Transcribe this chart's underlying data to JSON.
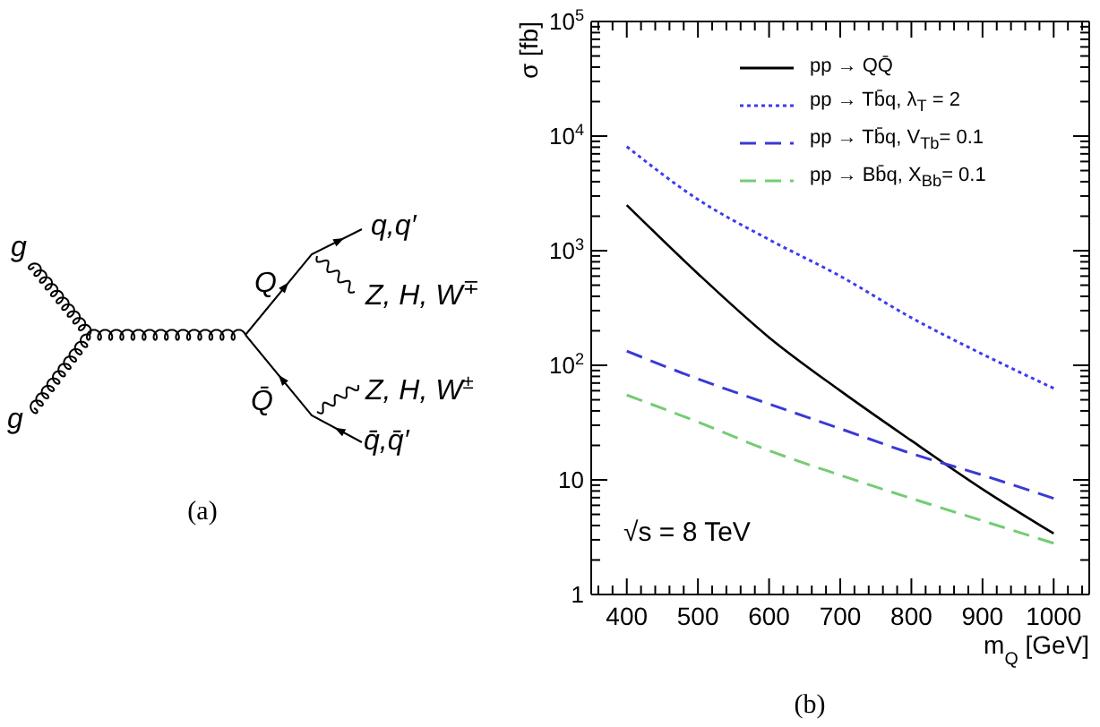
{
  "chart_data": [
    {
      "type": "other",
      "annotations": [
        "g",
        "g",
        "Q",
        "Q̄",
        "q,q′",
        "Z, H, W$^{∓}$",
        "Z, H, W$^{±}$",
        "q̄,q̄′",
        "(a)"
      ]
    },
    {
      "type": "line",
      "xlabel": "m$_{Q}$ [GeV]",
      "ylabel": "σ [fb]",
      "annotations": [
        "√s = 8 TeV",
        "(b)"
      ],
      "x": [
        400,
        500,
        600,
        700,
        800,
        900,
        1000
      ],
      "series": [
        {
          "name": "pp → QQ̄",
          "color": "#000000",
          "line_style": "solid",
          "values": [
            2500,
            630,
            175,
            60,
            22,
            8.3,
            3.4
          ]
        },
        {
          "name": "pp → Tb̄q, λ$_{T}$ = 2",
          "color": "#3c3cf0",
          "line_style": "dotted",
          "values": [
            8100,
            2800,
            1250,
            600,
            260,
            125,
            63
          ]
        },
        {
          "name": "pp → Tb̄q, V$_{Tb}$= 0.1",
          "color": "#3a3ad4",
          "line_style": "dashed",
          "values": [
            133,
            76,
            46,
            28,
            17,
            11,
            6.9
          ]
        },
        {
          "name": "pp → Bb̄q, X$_{Bb}$= 0.1",
          "color": "#74cc74",
          "line_style": "dashed",
          "values": [
            55,
            32,
            18,
            11,
            6.9,
            4.4,
            2.8
          ]
        }
      ],
      "xlim": [
        350,
        1050
      ],
      "ylim": [
        1,
        100000
      ],
      "xticks": [
        {
          "value": 360,
          "label": null
        },
        {
          "value": 380,
          "label": null
        },
        400,
        {
          "value": 420,
          "label": null
        },
        {
          "value": 440,
          "label": null
        },
        {
          "value": 460,
          "label": null
        },
        {
          "value": 480,
          "label": null
        },
        500,
        {
          "value": 520,
          "label": null
        },
        {
          "value": 540,
          "label": null
        },
        {
          "value": 560,
          "label": null
        },
        {
          "value": 580,
          "label": null
        },
        600,
        {
          "value": 620,
          "label": null
        },
        {
          "value": 640,
          "label": null
        },
        {
          "value": 660,
          "label": null
        },
        {
          "value": 680,
          "label": null
        },
        700,
        {
          "value": 720,
          "label": null
        },
        {
          "value": 740,
          "label": null
        },
        {
          "value": 760,
          "label": null
        },
        {
          "value": 780,
          "label": null
        },
        800,
        {
          "value": 820,
          "label": null
        },
        {
          "value": 840,
          "label": null
        },
        {
          "value": 860,
          "label": null
        },
        {
          "value": 880,
          "label": null
        },
        900,
        {
          "value": 920,
          "label": null
        },
        {
          "value": 940,
          "label": null
        },
        {
          "value": 960,
          "label": null
        },
        {
          "value": 980,
          "label": null
        },
        1000,
        {
          "value": 1020,
          "label": null
        },
        {
          "value": 1040,
          "label": null
        }
      ],
      "yticks": [
        1,
        {
          "value": 2,
          "label": null
        },
        {
          "value": 3,
          "label": null
        },
        {
          "value": 4,
          "label": null
        },
        {
          "value": 5,
          "label": null
        },
        {
          "value": 6,
          "label": null
        },
        {
          "value": 7,
          "label": null
        },
        {
          "value": 8,
          "label": null
        },
        {
          "value": 9,
          "label": null
        },
        10,
        {
          "value": 20,
          "label": null
        },
        {
          "value": 30,
          "label": null
        },
        {
          "value": 40,
          "label": null
        },
        {
          "value": 50,
          "label": null
        },
        {
          "value": 60,
          "label": null
        },
        {
          "value": 70,
          "label": null
        },
        {
          "value": 80,
          "label": null
        },
        {
          "value": 90,
          "label": null
        },
        {
          "value": 100,
          "label": "10$^{2}$"
        },
        {
          "value": 200,
          "label": null
        },
        {
          "value": 300,
          "label": null
        },
        {
          "value": 400,
          "label": null
        },
        {
          "value": 500,
          "label": null
        },
        {
          "value": 600,
          "label": null
        },
        {
          "value": 700,
          "label": null
        },
        {
          "value": 800,
          "label": null
        },
        {
          "value": 900,
          "label": null
        },
        {
          "value": 1000,
          "label": "10$^{3}$"
        },
        {
          "value": 2000,
          "label": null
        },
        {
          "value": 3000,
          "label": null
        },
        {
          "value": 4000,
          "label": null
        },
        {
          "value": 5000,
          "label": null
        },
        {
          "value": 6000,
          "label": null
        },
        {
          "value": 7000,
          "label": null
        },
        {
          "value": 8000,
          "label": null
        },
        {
          "value": 9000,
          "label": null
        },
        {
          "value": 10000,
          "label": "10$^{4}$"
        },
        {
          "value": 20000,
          "label": null
        },
        {
          "value": 30000,
          "label": null
        },
        {
          "value": 40000,
          "label": null
        },
        {
          "value": 50000,
          "label": null
        },
        {
          "value": 60000,
          "label": null
        },
        {
          "value": 70000,
          "label": null
        },
        {
          "value": 80000,
          "label": null
        },
        {
          "value": 90000,
          "label": null
        },
        {
          "value": 100000,
          "label": "10$^{5}$"
        }
      ],
      "log": true,
      "legend": "top right"
    }
  ]
}
